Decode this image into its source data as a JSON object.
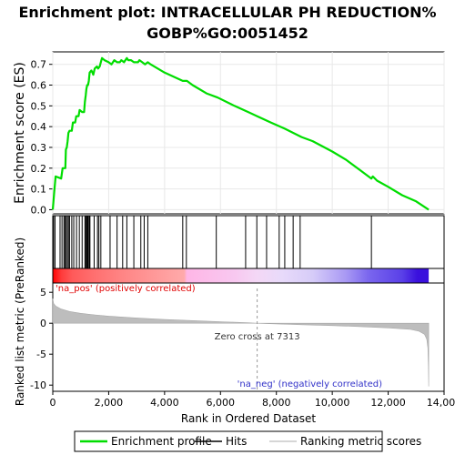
{
  "title_line1": "Enrichment plot: INTRACELLULAR PH REDUCTION%",
  "title_line2": "GOBP%GO:0051452",
  "chart_data": {
    "type": "line",
    "es_panel": {
      "ylabel": "Enrichment score (ES)",
      "ylim": [
        -0.02,
        0.76
      ],
      "yticks": [
        "0.0",
        "0.1",
        "0.2",
        "0.3",
        "0.4",
        "0.5",
        "0.6",
        "0.7"
      ],
      "ytick_values": [
        0.0,
        0.1,
        0.2,
        0.3,
        0.4,
        0.5,
        0.6,
        0.7
      ],
      "series_color": "#00dd00",
      "curve": [
        [
          0,
          0.0
        ],
        [
          50,
          0.08
        ],
        [
          100,
          0.16
        ],
        [
          300,
          0.15
        ],
        [
          350,
          0.2
        ],
        [
          450,
          0.2
        ],
        [
          470,
          0.29
        ],
        [
          500,
          0.3
        ],
        [
          530,
          0.33
        ],
        [
          560,
          0.37
        ],
        [
          600,
          0.38
        ],
        [
          680,
          0.38
        ],
        [
          720,
          0.42
        ],
        [
          800,
          0.42
        ],
        [
          840,
          0.45
        ],
        [
          920,
          0.45
        ],
        [
          960,
          0.48
        ],
        [
          1050,
          0.47
        ],
        [
          1120,
          0.47
        ],
        [
          1150,
          0.52
        ],
        [
          1180,
          0.55
        ],
        [
          1200,
          0.58
        ],
        [
          1230,
          0.6
        ],
        [
          1260,
          0.6
        ],
        [
          1290,
          0.62
        ],
        [
          1320,
          0.66
        ],
        [
          1380,
          0.67
        ],
        [
          1420,
          0.66
        ],
        [
          1450,
          0.65
        ],
        [
          1500,
          0.68
        ],
        [
          1580,
          0.69
        ],
        [
          1620,
          0.68
        ],
        [
          1680,
          0.69
        ],
        [
          1720,
          0.71
        ],
        [
          1760,
          0.73
        ],
        [
          1850,
          0.72
        ],
        [
          2000,
          0.71
        ],
        [
          2100,
          0.7
        ],
        [
          2200,
          0.72
        ],
        [
          2300,
          0.71
        ],
        [
          2400,
          0.71
        ],
        [
          2450,
          0.72
        ],
        [
          2550,
          0.71
        ],
        [
          2650,
          0.73
        ],
        [
          2700,
          0.72
        ],
        [
          2800,
          0.72
        ],
        [
          2900,
          0.71
        ],
        [
          3050,
          0.71
        ],
        [
          3100,
          0.72
        ],
        [
          3200,
          0.71
        ],
        [
          3300,
          0.7
        ],
        [
          3400,
          0.71
        ],
        [
          3500,
          0.7
        ],
        [
          4000,
          0.66
        ],
        [
          4650,
          0.62
        ],
        [
          4750,
          0.62
        ],
        [
          4800,
          0.62
        ],
        [
          5000,
          0.6
        ],
        [
          5500,
          0.56
        ],
        [
          5900,
          0.54
        ],
        [
          6500,
          0.5
        ],
        [
          7000,
          0.47
        ],
        [
          7313,
          0.45
        ],
        [
          7800,
          0.42
        ],
        [
          8300,
          0.39
        ],
        [
          8900,
          0.35
        ],
        [
          9300,
          0.33
        ],
        [
          10000,
          0.28
        ],
        [
          10500,
          0.24
        ],
        [
          11000,
          0.19
        ],
        [
          11400,
          0.15
        ],
        [
          11450,
          0.16
        ],
        [
          11600,
          0.14
        ],
        [
          12000,
          0.11
        ],
        [
          12500,
          0.07
        ],
        [
          13000,
          0.04
        ],
        [
          13450,
          0.0
        ]
      ]
    },
    "hits": [
      30,
      80,
      260,
      330,
      400,
      430,
      470,
      520,
      560,
      600,
      680,
      750,
      850,
      950,
      1050,
      1150,
      1180,
      1210,
      1240,
      1270,
      1310,
      1330,
      1480,
      1600,
      1650,
      1720,
      2050,
      2300,
      2500,
      2650,
      2900,
      3150,
      3270,
      3400,
      4650,
      4780,
      5850,
      6900,
      7300,
      7650,
      8100,
      8300,
      8600,
      8850,
      11400
    ],
    "ranked_panel": {
      "ylabel": "Ranked list metric (PreRanked)",
      "ylim": [
        -11,
        6.5
      ],
      "yticks": [
        "5",
        "0",
        "-5",
        "-10"
      ],
      "ytick_values": [
        5,
        0,
        -5,
        -10
      ],
      "pos_label": "'na_pos' (positively correlated)",
      "neg_label": "'na_neg' (negatively correlated)",
      "zero_cross_label": "Zero cross at 7313",
      "zero_cross": 7313,
      "metric": [
        [
          0,
          4.0
        ],
        [
          30,
          3.2
        ],
        [
          100,
          2.8
        ],
        [
          300,
          2.3
        ],
        [
          600,
          1.9
        ],
        [
          1000,
          1.6
        ],
        [
          1500,
          1.35
        ],
        [
          2000,
          1.15
        ],
        [
          3000,
          0.85
        ],
        [
          4000,
          0.6
        ],
        [
          5000,
          0.42
        ],
        [
          6000,
          0.25
        ],
        [
          7000,
          0.08
        ],
        [
          7313,
          0.0
        ],
        [
          8000,
          -0.12
        ],
        [
          9000,
          -0.25
        ],
        [
          10000,
          -0.38
        ],
        [
          11000,
          -0.55
        ],
        [
          12000,
          -0.75
        ],
        [
          12800,
          -1.0
        ],
        [
          13100,
          -1.3
        ],
        [
          13300,
          -1.8
        ],
        [
          13380,
          -2.6
        ],
        [
          13420,
          -4.0
        ],
        [
          13440,
          -7.0
        ],
        [
          13450,
          -10.2
        ]
      ]
    },
    "xaxis": {
      "xlabel": "Rank in Ordered Dataset",
      "xlim": [
        0,
        14000
      ],
      "xticks": [
        "0",
        "2,000",
        "4,000",
        "6,000",
        "8,000",
        "10,000",
        "12,000",
        "14,000"
      ],
      "xtick_values": [
        0,
        2000,
        4000,
        6000,
        8000,
        10000,
        12000,
        14000
      ],
      "n_genes": 13450
    },
    "heat_stops": [
      [
        0,
        "#ff0000"
      ],
      [
        300,
        "#ff3a3a"
      ],
      [
        700,
        "#ff5a5a"
      ],
      [
        1500,
        "#ff7070"
      ],
      [
        2500,
        "#ff8585"
      ],
      [
        3600,
        "#ff9898"
      ],
      [
        4700,
        "#ffaaaa"
      ],
      [
        4800,
        "#ffb6e6"
      ],
      [
        6500,
        "#f8c8f0"
      ],
      [
        7313,
        "#f4d8f6"
      ],
      [
        8200,
        "#e8dafa"
      ],
      [
        9300,
        "#d6ccf8"
      ],
      [
        10500,
        "#a898f4"
      ],
      [
        11300,
        "#7a66ee"
      ],
      [
        12500,
        "#5a40e8"
      ],
      [
        13050,
        "#3a10dd"
      ],
      [
        13450,
        "#3a10dd"
      ]
    ],
    "legend": [
      {
        "label": "Enrichment profile",
        "color": "#00dd00",
        "kind": "line"
      },
      {
        "label": "Hits",
        "color": "#000000",
        "kind": "line"
      },
      {
        "label": "Ranking metric scores",
        "color": "#c8c8c8",
        "kind": "line"
      }
    ]
  }
}
